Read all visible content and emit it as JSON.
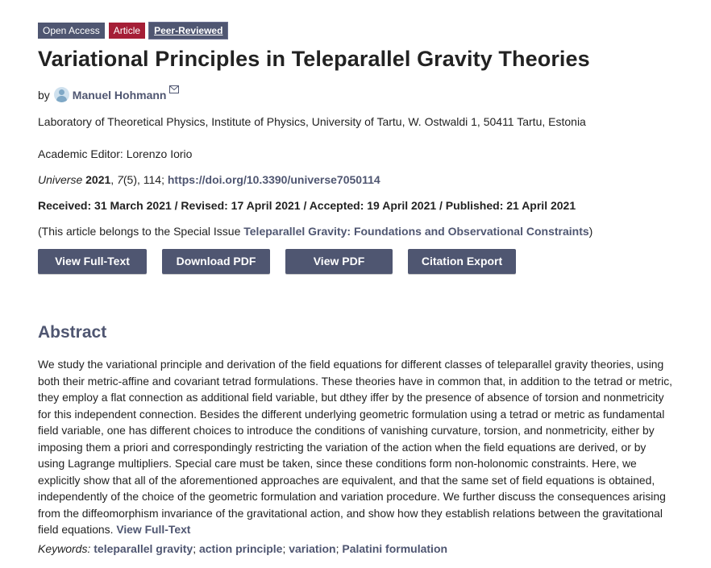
{
  "badges": {
    "open_access": "Open Access",
    "article": "Article",
    "peer_reviewed": "Peer-Reviewed"
  },
  "title": "Variational Principles in Teleparallel Gravity Theories",
  "byline": {
    "by": "by",
    "author": "Manuel Hohmann",
    "avatar_icon": "user-avatar-icon",
    "mail_icon": "envelope-icon"
  },
  "affiliation": "Laboratory of Theoretical Physics, Institute of Physics, University of Tartu, W. Ostwaldi 1, 50411 Tartu, Estonia",
  "editor": "Academic Editor: Lorenzo Iorio",
  "citation": {
    "journal": "Universe",
    "year": "2021",
    "volume": "7",
    "issue": "(5), 114;",
    "doi": "https://doi.org/10.3390/universe7050114"
  },
  "dates": "Received: 31 March 2021 / Revised: 17 April 2021 / Accepted: 19 April 2021 / Published: 21 April 2021",
  "special_issue": {
    "prefix": "(This article belongs to the Special Issue ",
    "link": "Teleparallel Gravity: Foundations and Observational Constraints",
    "suffix": ")"
  },
  "buttons": {
    "full_text": "View Full-Text",
    "download_pdf": "Download PDF",
    "view_pdf": "View PDF",
    "citation_export": "Citation Export"
  },
  "abstract": {
    "heading": "Abstract",
    "text": "We study the variational principle and derivation of the field equations for different classes of teleparallel gravity theories, using both their metric-affine and covariant tetrad formulations. These theories have in common that, in addition to the tetrad or metric, they employ a flat connection as additional field variable, but dthey iffer by the presence of absence of torsion and nonmetricity for this independent connection. Besides the different underlying geometric formulation using a tetrad or metric as fundamental field variable, one has different choices to introduce the conditions of vanishing curvature, torsion, and nonmetricity, either by imposing them a priori and correspondingly restricting the variation of the action when the field equations are derived, or by using Lagrange multipliers. Special care must be taken, since these conditions form non-holonomic constraints. Here, we explicitly show that all of the aforementioned approaches are equivalent, and that the same set of field equations is obtained, independently of the choice of the geometric formulation and variation procedure. We further discuss the consequences arising from the diffeomorphism invariance of the gravitational action, and show how they establish relations between the gravitational field equations.",
    "link": "View Full-Text"
  },
  "keywords": {
    "label": "Keywords:",
    "items": [
      "teleparallel gravity",
      "action principle",
      "variation",
      "Palatini formulation"
    ]
  }
}
